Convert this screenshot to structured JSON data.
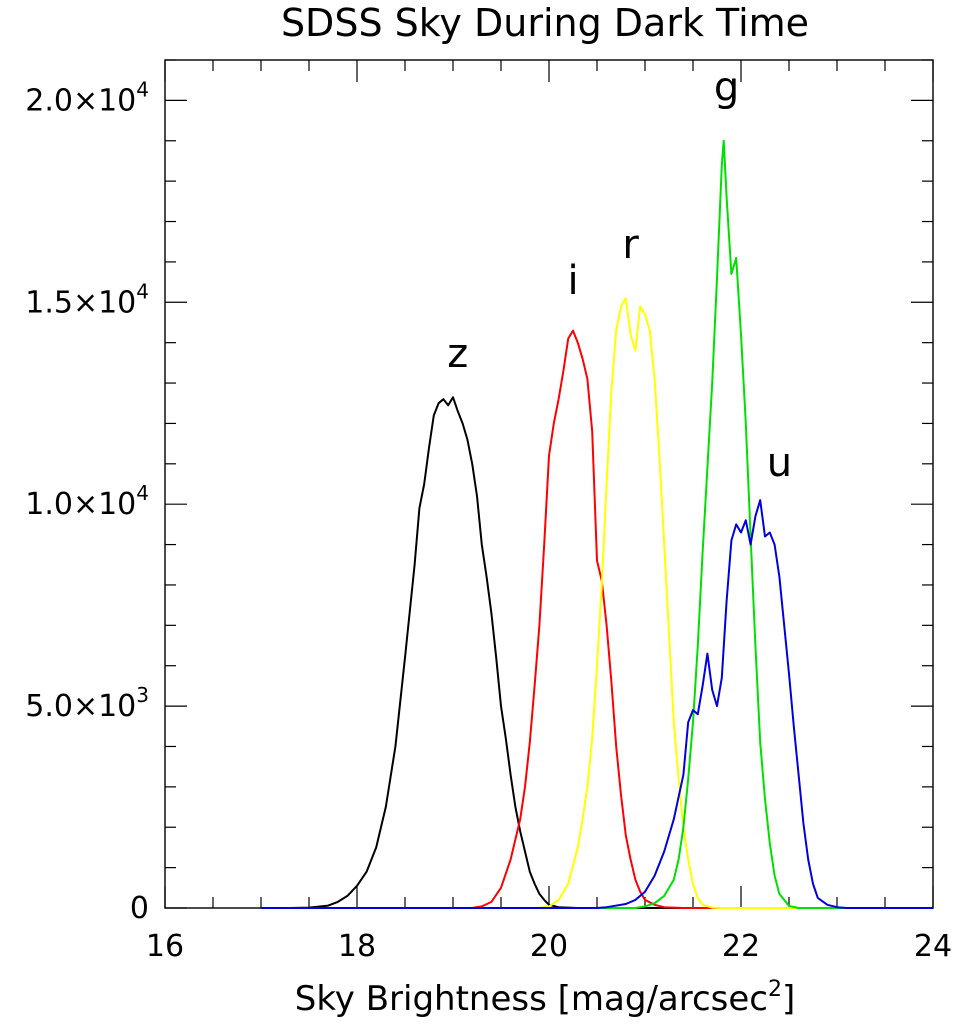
{
  "chart_data": {
    "type": "line",
    "title": "SDSS Sky During Dark Time",
    "xlabel": "Sky Brightness [mag/arcsec",
    "xlabel_sup": "2",
    "xlabel_end": "]",
    "ylabel": "",
    "xlim": [
      16,
      24
    ],
    "ylim": [
      0,
      21000
    ],
    "grid": false,
    "legend": "none",
    "x_ticks": [
      {
        "value": 16,
        "label": "16"
      },
      {
        "value": 18,
        "label": "18"
      },
      {
        "value": 20,
        "label": "20"
      },
      {
        "value": 22,
        "label": "22"
      },
      {
        "value": 24,
        "label": "24"
      }
    ],
    "y_ticks": [
      {
        "value": 0,
        "mant": "0",
        "exp": ""
      },
      {
        "value": 5000,
        "mant": "5.0×10",
        "exp": "3"
      },
      {
        "value": 10000,
        "mant": "1.0×10",
        "exp": "4"
      },
      {
        "value": 15000,
        "mant": "1.5×10",
        "exp": "4"
      },
      {
        "value": 20000,
        "mant": "2.0×10",
        "exp": "4"
      }
    ],
    "series": [
      {
        "name": "z",
        "color": "#000000",
        "label_pos": [
          19.05,
          13400
        ],
        "points": [
          [
            17.0,
            0
          ],
          [
            17.3,
            0
          ],
          [
            17.5,
            10
          ],
          [
            17.7,
            60
          ],
          [
            17.8,
            150
          ],
          [
            17.9,
            300
          ],
          [
            18.0,
            550
          ],
          [
            18.1,
            900
          ],
          [
            18.2,
            1500
          ],
          [
            18.3,
            2500
          ],
          [
            18.4,
            4000
          ],
          [
            18.5,
            6200
          ],
          [
            18.6,
            8500
          ],
          [
            18.65,
            9900
          ],
          [
            18.7,
            10500
          ],
          [
            18.75,
            11400
          ],
          [
            18.8,
            12200
          ],
          [
            18.85,
            12500
          ],
          [
            18.9,
            12600
          ],
          [
            18.95,
            12450
          ],
          [
            19.0,
            12650
          ],
          [
            19.05,
            12300
          ],
          [
            19.1,
            12000
          ],
          [
            19.15,
            11600
          ],
          [
            19.2,
            11000
          ],
          [
            19.25,
            10200
          ],
          [
            19.3,
            9000
          ],
          [
            19.35,
            8200
          ],
          [
            19.4,
            7300
          ],
          [
            19.45,
            6200
          ],
          [
            19.5,
            5000
          ],
          [
            19.55,
            4200
          ],
          [
            19.6,
            3300
          ],
          [
            19.65,
            2500
          ],
          [
            19.7,
            1900
          ],
          [
            19.75,
            1400
          ],
          [
            19.8,
            900
          ],
          [
            19.85,
            600
          ],
          [
            19.9,
            350
          ],
          [
            19.95,
            200
          ],
          [
            20.0,
            80
          ],
          [
            20.1,
            20
          ],
          [
            20.3,
            0
          ],
          [
            24.0,
            0
          ]
        ]
      },
      {
        "name": "i",
        "color": "#ff0000",
        "label_pos": [
          20.25,
          15200
        ],
        "points": [
          [
            17.0,
            0
          ],
          [
            19.2,
            0
          ],
          [
            19.3,
            40
          ],
          [
            19.4,
            150
          ],
          [
            19.5,
            500
          ],
          [
            19.6,
            1200
          ],
          [
            19.7,
            2200
          ],
          [
            19.75,
            3000
          ],
          [
            19.8,
            4100
          ],
          [
            19.85,
            5500
          ],
          [
            19.9,
            7000
          ],
          [
            19.95,
            9000
          ],
          [
            20.0,
            11200
          ],
          [
            20.05,
            12000
          ],
          [
            20.1,
            12600
          ],
          [
            20.15,
            13300
          ],
          [
            20.2,
            14100
          ],
          [
            20.25,
            14300
          ],
          [
            20.3,
            14000
          ],
          [
            20.35,
            13600
          ],
          [
            20.4,
            13100
          ],
          [
            20.45,
            11800
          ],
          [
            20.5,
            8600
          ],
          [
            20.55,
            8100
          ],
          [
            20.6,
            7000
          ],
          [
            20.65,
            5600
          ],
          [
            20.7,
            4000
          ],
          [
            20.75,
            2800
          ],
          [
            20.8,
            1800
          ],
          [
            20.85,
            1200
          ],
          [
            20.9,
            700
          ],
          [
            20.95,
            400
          ],
          [
            21.0,
            200
          ],
          [
            21.1,
            80
          ],
          [
            21.2,
            20
          ],
          [
            21.4,
            0
          ],
          [
            24.0,
            0
          ]
        ]
      },
      {
        "name": "r",
        "color": "#ffff00",
        "label_pos": [
          20.85,
          16100
        ],
        "points": [
          [
            17.0,
            0
          ],
          [
            19.9,
            0
          ],
          [
            20.0,
            40
          ],
          [
            20.1,
            200
          ],
          [
            20.2,
            600
          ],
          [
            20.3,
            1500
          ],
          [
            20.35,
            2200
          ],
          [
            20.4,
            3000
          ],
          [
            20.45,
            4200
          ],
          [
            20.5,
            6000
          ],
          [
            20.55,
            8000
          ],
          [
            20.6,
            10500
          ],
          [
            20.65,
            12800
          ],
          [
            20.7,
            14300
          ],
          [
            20.75,
            14900
          ],
          [
            20.8,
            15100
          ],
          [
            20.85,
            14200
          ],
          [
            20.9,
            13800
          ],
          [
            20.95,
            14900
          ],
          [
            21.0,
            14700
          ],
          [
            21.05,
            14300
          ],
          [
            21.1,
            13100
          ],
          [
            21.15,
            11200
          ],
          [
            21.2,
            9000
          ],
          [
            21.25,
            6800
          ],
          [
            21.3,
            4600
          ],
          [
            21.35,
            3200
          ],
          [
            21.4,
            2000
          ],
          [
            21.45,
            1200
          ],
          [
            21.5,
            600
          ],
          [
            21.55,
            250
          ],
          [
            21.6,
            80
          ],
          [
            21.7,
            10
          ],
          [
            21.8,
            0
          ],
          [
            24.0,
            0
          ]
        ]
      },
      {
        "name": "g",
        "color": "#00e000",
        "label_pos": [
          21.85,
          20000
        ],
        "points": [
          [
            17.0,
            0
          ],
          [
            20.9,
            0
          ],
          [
            21.0,
            40
          ],
          [
            21.1,
            120
          ],
          [
            21.2,
            300
          ],
          [
            21.3,
            700
          ],
          [
            21.35,
            1200
          ],
          [
            21.4,
            2000
          ],
          [
            21.45,
            3200
          ],
          [
            21.5,
            4600
          ],
          [
            21.55,
            6500
          ],
          [
            21.6,
            8800
          ],
          [
            21.65,
            10900
          ],
          [
            21.7,
            13000
          ],
          [
            21.75,
            15600
          ],
          [
            21.8,
            18400
          ],
          [
            21.82,
            19000
          ],
          [
            21.85,
            17600
          ],
          [
            21.9,
            15700
          ],
          [
            21.95,
            16100
          ],
          [
            22.0,
            14200
          ],
          [
            22.05,
            12000
          ],
          [
            22.1,
            9200
          ],
          [
            22.15,
            6500
          ],
          [
            22.2,
            4100
          ],
          [
            22.25,
            2700
          ],
          [
            22.3,
            1600
          ],
          [
            22.35,
            800
          ],
          [
            22.4,
            350
          ],
          [
            22.5,
            50
          ],
          [
            22.6,
            0
          ],
          [
            24.0,
            0
          ]
        ]
      },
      {
        "name": "u",
        "color": "#0000e0",
        "label_pos": [
          22.4,
          10700
        ],
        "points": [
          [
            17.0,
            0
          ],
          [
            20.5,
            0
          ],
          [
            20.6,
            20
          ],
          [
            20.8,
            100
          ],
          [
            20.9,
            200
          ],
          [
            21.0,
            400
          ],
          [
            21.1,
            800
          ],
          [
            21.2,
            1400
          ],
          [
            21.3,
            2200
          ],
          [
            21.4,
            3300
          ],
          [
            21.45,
            4600
          ],
          [
            21.5,
            4900
          ],
          [
            21.55,
            4800
          ],
          [
            21.6,
            5500
          ],
          [
            21.65,
            6300
          ],
          [
            21.7,
            5400
          ],
          [
            21.75,
            5000
          ],
          [
            21.8,
            5700
          ],
          [
            21.85,
            7600
          ],
          [
            21.9,
            9100
          ],
          [
            21.95,
            9500
          ],
          [
            22.0,
            9300
          ],
          [
            22.05,
            9600
          ],
          [
            22.1,
            9000
          ],
          [
            22.15,
            9700
          ],
          [
            22.2,
            10100
          ],
          [
            22.25,
            9200
          ],
          [
            22.3,
            9300
          ],
          [
            22.35,
            9000
          ],
          [
            22.4,
            8200
          ],
          [
            22.45,
            7000
          ],
          [
            22.5,
            5800
          ],
          [
            22.55,
            4500
          ],
          [
            22.6,
            3300
          ],
          [
            22.65,
            2100
          ],
          [
            22.7,
            1200
          ],
          [
            22.75,
            600
          ],
          [
            22.8,
            250
          ],
          [
            22.9,
            80
          ],
          [
            23.0,
            20
          ],
          [
            23.1,
            0
          ],
          [
            24.0,
            0
          ]
        ]
      }
    ]
  }
}
